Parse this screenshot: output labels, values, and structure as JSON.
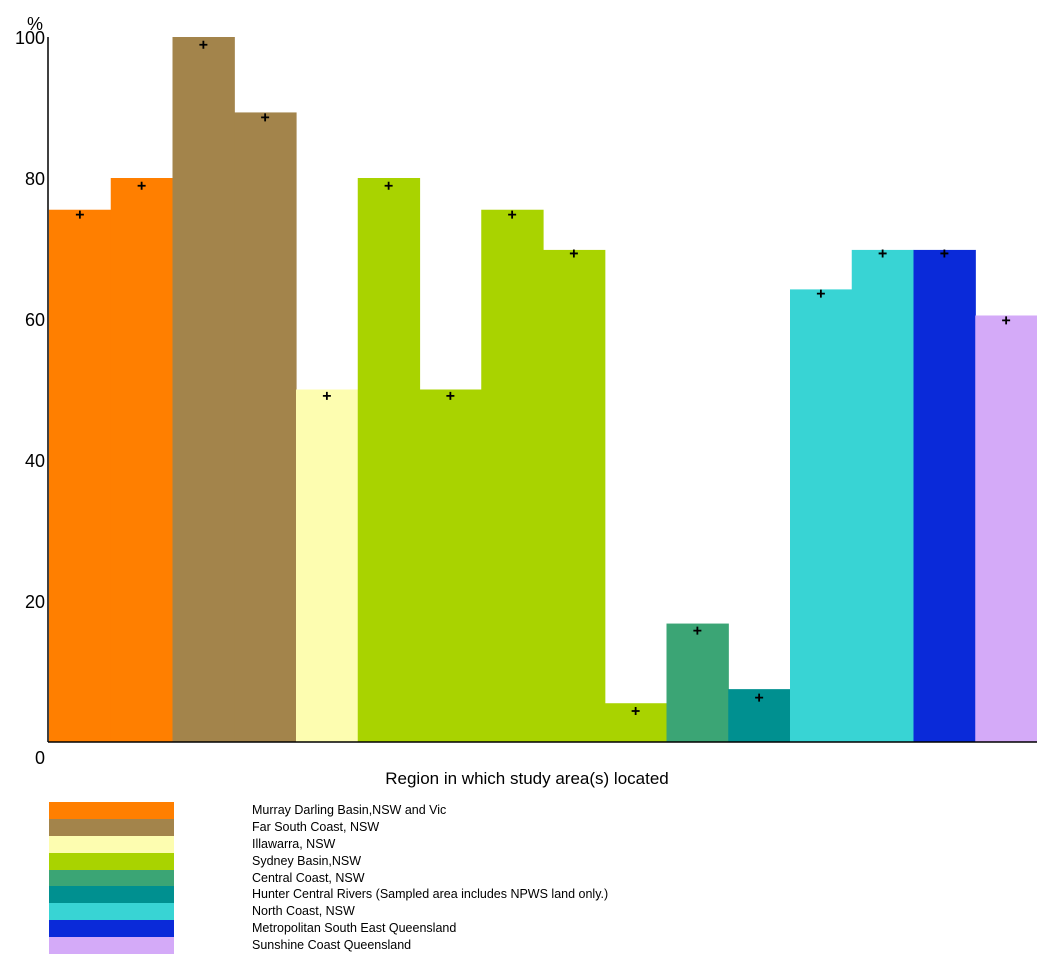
{
  "chart_data": {
    "type": "bar",
    "ylabel": "%",
    "xlabel": "Region in which study area(s) located",
    "ylim": [
      0,
      100
    ],
    "yticks": [
      0,
      20,
      40,
      60,
      80,
      100
    ],
    "grid": false,
    "legend_position": "bottom",
    "colors": {
      "murray": "#ff7f00",
      "far_south": "#a3844b",
      "illawarra": "#fdfdb0",
      "sydney": "#a9d300",
      "central_coast": "#3ba575",
      "hunter": "#009090",
      "north_coast": "#38d4d4",
      "metro_se_qld": "#0a2ad9",
      "sunshine": "#d4aaf8"
    },
    "regions": [
      {
        "key": "murray",
        "label": "Murray Darling Basin,NSW and Vic"
      },
      {
        "key": "far_south",
        "label": "Far South Coast, NSW"
      },
      {
        "key": "illawarra",
        "label": "Illawarra, NSW"
      },
      {
        "key": "sydney",
        "label": "Sydney Basin,NSW"
      },
      {
        "key": "central_coast",
        "label": "Central Coast, NSW"
      },
      {
        "key": "hunter",
        "label": "Hunter Central Rivers (Sampled area includes NPWS land only.)"
      },
      {
        "key": "north_coast",
        "label": "North Coast, NSW"
      },
      {
        "key": "metro_se_qld",
        "label": "Metropolitan South East  Queensland"
      },
      {
        "key": "sunshine",
        "label": "Sunshine Coast Queensland"
      }
    ],
    "bars": [
      {
        "region": "murray",
        "value": 75.5,
        "marker": 74.8
      },
      {
        "region": "murray",
        "value": 80.0,
        "marker": 78.9
      },
      {
        "region": "far_south",
        "value": 100.0,
        "marker": 98.9
      },
      {
        "region": "far_south",
        "value": 89.3,
        "marker": 88.6
      },
      {
        "region": "illawarra",
        "value": 50.0,
        "marker": 49.1
      },
      {
        "region": "sydney",
        "value": 80.0,
        "marker": 78.9
      },
      {
        "region": "sydney",
        "value": 50.0,
        "marker": 49.1
      },
      {
        "region": "sydney",
        "value": 75.5,
        "marker": 74.8
      },
      {
        "region": "sydney",
        "value": 69.8,
        "marker": 69.3
      },
      {
        "region": "sydney",
        "value": 5.5,
        "marker": 4.4
      },
      {
        "region": "central_coast",
        "value": 16.8,
        "marker": 15.8
      },
      {
        "region": "hunter",
        "value": 7.5,
        "marker": 6.3
      },
      {
        "region": "north_coast",
        "value": 64.2,
        "marker": 63.6
      },
      {
        "region": "north_coast",
        "value": 69.8,
        "marker": 69.3
      },
      {
        "region": "metro_se_qld",
        "value": 69.8,
        "marker": 69.3
      },
      {
        "region": "sunshine",
        "value": 60.5,
        "marker": 59.8
      }
    ]
  }
}
